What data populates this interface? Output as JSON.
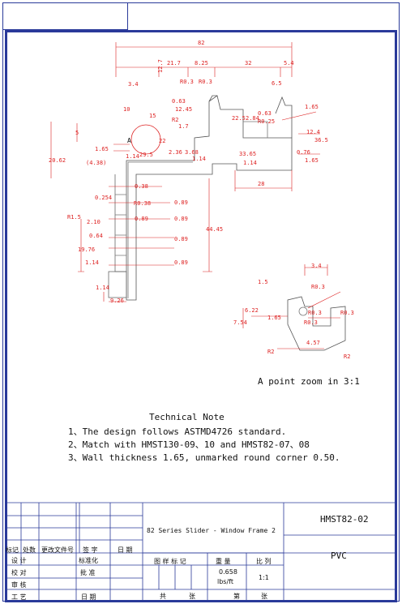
{
  "technical_note": {
    "title": "Technical Note",
    "lines": [
      "1、The design follows ASTMD4726 standard.",
      "2、Match with HMST130-09、10 and HMST82-07、08",
      "3、Wall thickness 1.65, unmarked round corner 0.50."
    ]
  },
  "zoom_caption": "A point zoom in 3:1",
  "point_label": "A",
  "dimensions": [
    "82",
    "21.7",
    "8.25",
    "32",
    "5.4",
    "3.4",
    "12.7",
    "R0.3",
    "R0.3",
    "6.5",
    "0.63",
    "12.45",
    "1.65",
    "10",
    "15",
    "R2",
    "1.7",
    "2.84",
    "22.5",
    "0.63",
    "R0.25",
    "5",
    "1.65",
    "22",
    "29.5",
    "2.36",
    "3.68",
    "33.65",
    "0.76",
    "20.62",
    "(4.38)",
    "1.14",
    "1.14",
    "1.14",
    "1.65",
    "28",
    "12.4",
    "36.5",
    "0.254",
    "0.38",
    "R0.38",
    "0.89",
    "0.89",
    "0.89",
    "0.89",
    "0.89",
    "R1.5",
    "2.10",
    "0.64",
    "19.76",
    "1.14",
    "1.14",
    "44.45",
    "9.26",
    "3.4",
    "1.5",
    "R0.3",
    "6.22",
    "7.54",
    "R0.3",
    "1.65",
    "R0.3",
    "R0.3",
    "R2",
    "R2",
    "4.57"
  ],
  "title_block": {
    "drawing_code": "HMST82-02",
    "product_name": "82 Series Slider - Window Frame 2",
    "material": "PVC",
    "labels": {
      "mark": "标记",
      "count": "处数",
      "change_doc": "更改文件号",
      "sign": "签 字",
      "date": "日 期",
      "design": "设 计",
      "standardize": "标准化",
      "check": "校 对",
      "approve": "批 准",
      "review": "审 核",
      "process": "工 艺",
      "date2": "日 期",
      "pattern_mark": "图 样 标 记",
      "weight": "重 量",
      "scale": "比 列",
      "total": "共",
      "sheet": "张",
      "index": "第",
      "sheet2": "张"
    },
    "weight_value": "0.658",
    "weight_unit": "lbs/ft",
    "scale_value": "1:1"
  }
}
